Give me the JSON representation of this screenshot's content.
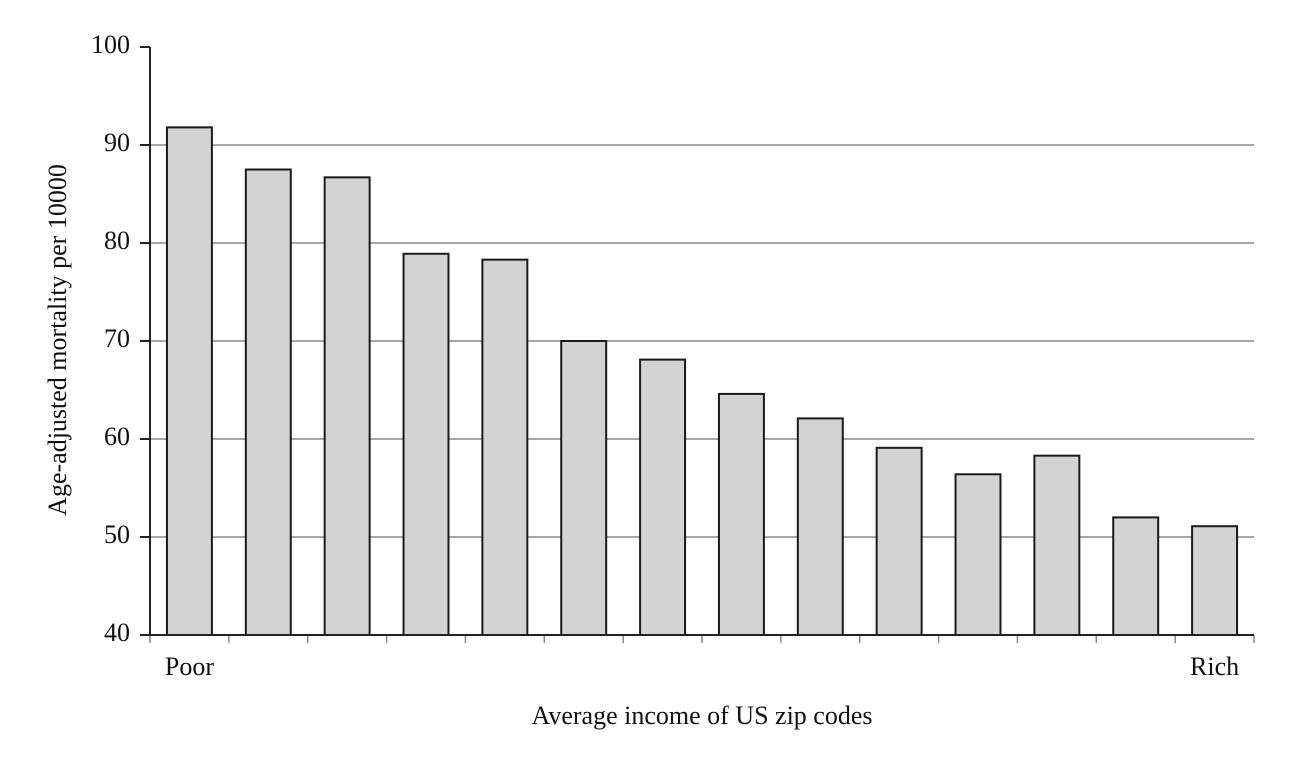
{
  "chart_data": {
    "type": "bar",
    "x_label": "Average income of US zip codes",
    "y_label": "Age-adjusted mortality per 10000",
    "categories": [
      "Poor",
      null,
      null,
      null,
      null,
      null,
      null,
      null,
      null,
      null,
      null,
      null,
      null,
      "Rich"
    ],
    "values": [
      91.8,
      87.5,
      86.7,
      78.9,
      78.3,
      70.0,
      68.1,
      64.6,
      62.1,
      59.1,
      56.4,
      58.3,
      52.0,
      51.1
    ],
    "color": "#d3d3d3",
    "ylim": [
      40,
      100
    ],
    "yticks": [
      40,
      50,
      60,
      70,
      80,
      90,
      100
    ],
    "grid": true
  }
}
